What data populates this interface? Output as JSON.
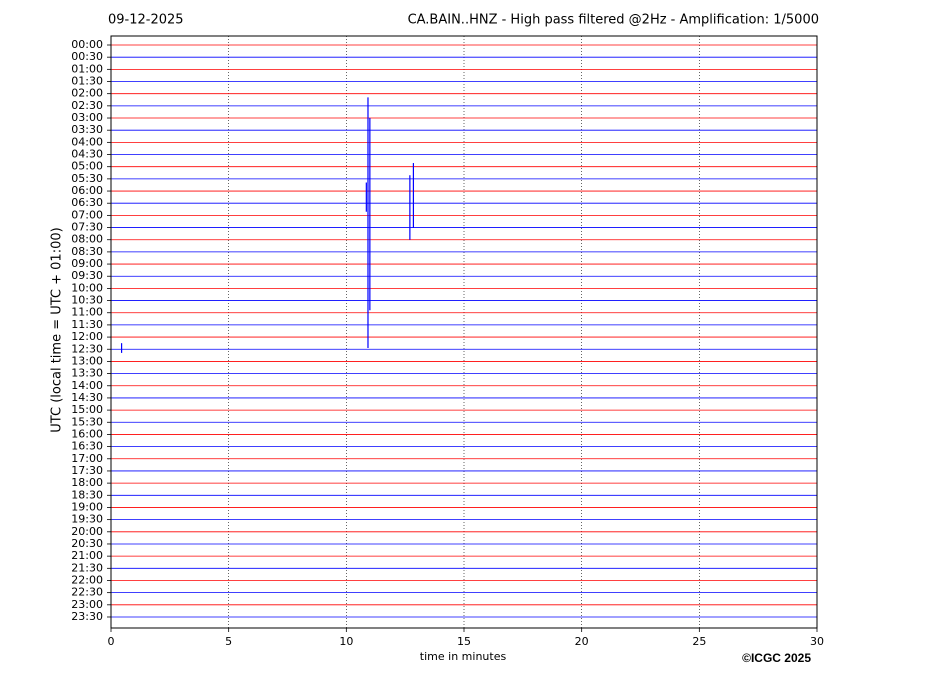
{
  "chart_data": {
    "type": "helicorder",
    "date": "09-12-2025",
    "title": "CA.BAIN..HNZ - High pass filtered @2Hz - Amplification: 1/5000",
    "y_label": "UTC (local time = UTC + 01:00)",
    "x_label": "time in minutes",
    "credit": "©ICGC 2025",
    "rows": [
      "00:00",
      "00:30",
      "01:00",
      "01:30",
      "02:00",
      "02:30",
      "03:00",
      "03:30",
      "04:00",
      "04:30",
      "05:00",
      "05:30",
      "06:00",
      "06:30",
      "07:00",
      "07:30",
      "08:00",
      "08:30",
      "09:00",
      "09:30",
      "10:00",
      "10:30",
      "11:00",
      "11:30",
      "12:00",
      "12:30",
      "13:00",
      "13:30",
      "14:00",
      "14:30",
      "15:00",
      "15:30",
      "16:00",
      "16:30",
      "17:00",
      "17:30",
      "18:00",
      "18:30",
      "19:00",
      "19:30",
      "20:00",
      "20:30",
      "21:00",
      "21:30",
      "22:00",
      "22:30",
      "23:00",
      "23:30"
    ],
    "trace_colors": [
      "red",
      "blue"
    ],
    "xlim": [
      0,
      30
    ],
    "xticks": [
      0,
      5,
      10,
      15,
      20,
      25,
      30
    ],
    "grid": true,
    "events": [
      {
        "x": 10.92,
        "y0": 4.3,
        "y1": 24.9
      },
      {
        "x": 11.0,
        "y0": 6.0,
        "y1": 21.8
      },
      {
        "x": 10.85,
        "y0": 11.3,
        "y1": 13.7
      },
      {
        "x": 12.7,
        "y0": 10.7,
        "y1": 16.0
      },
      {
        "x": 12.85,
        "y0": 9.7,
        "y1": 15.0
      },
      {
        "x": 0.45,
        "y0": 24.5,
        "y1": 25.3
      }
    ]
  }
}
